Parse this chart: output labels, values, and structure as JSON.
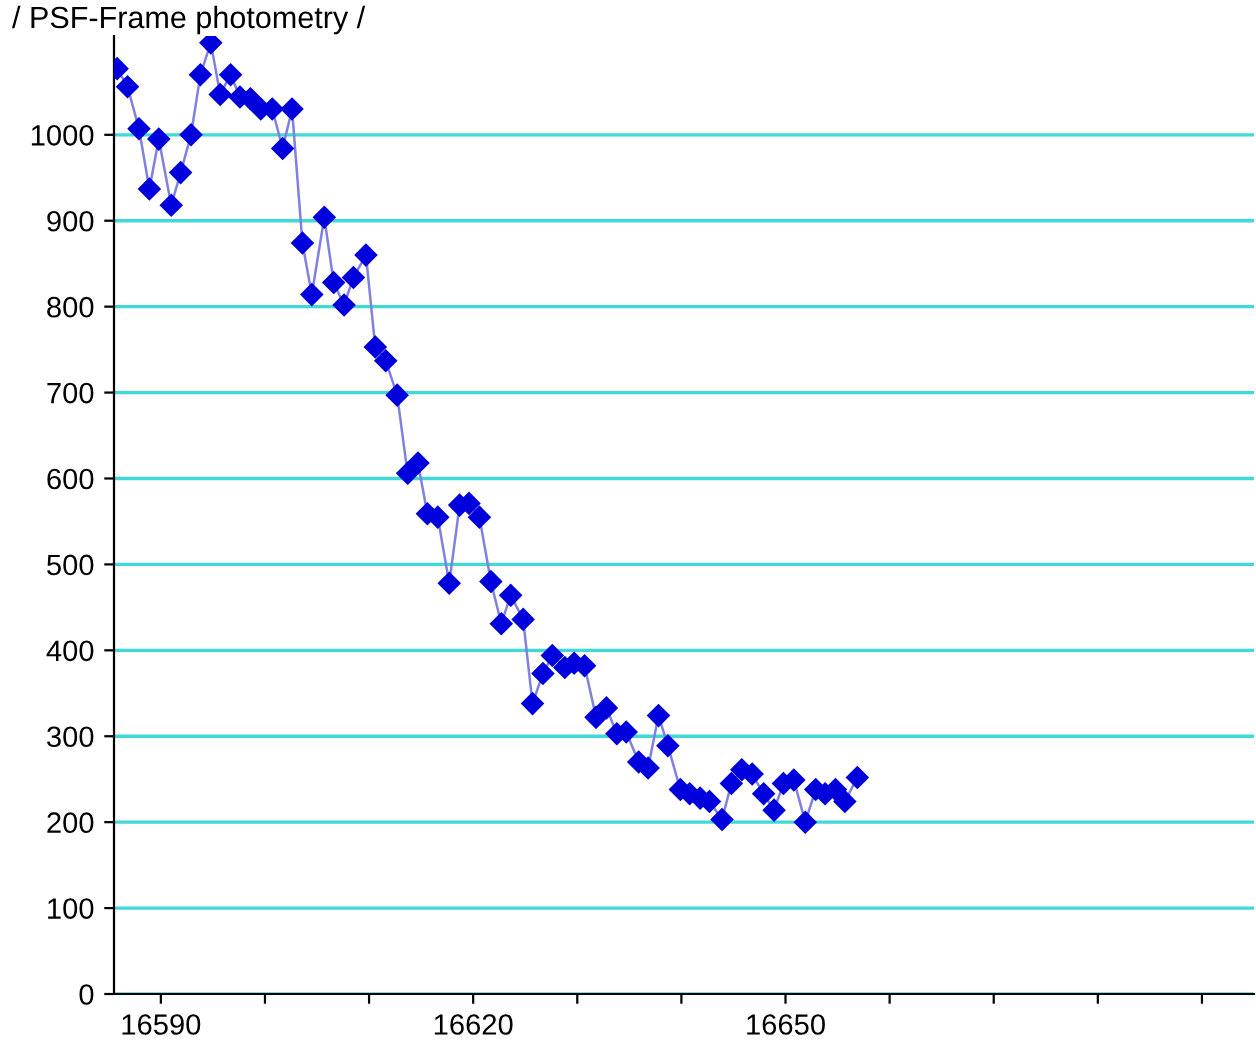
{
  "chart_data": {
    "type": "line",
    "title": "/ PSF-Frame photometry /",
    "x": [
      16585.8,
      16586.8,
      16587.9,
      16588.9,
      16589.8,
      16591.0,
      16591.9,
      16592.9,
      16593.8,
      16594.8,
      16595.7,
      16596.7,
      16597.6,
      16598.6,
      16599.6,
      16600.7,
      16601.7,
      16602.6,
      16603.6,
      16604.5,
      16605.7,
      16606.6,
      16607.6,
      16608.5,
      16609.7,
      16610.6,
      16611.6,
      16612.7,
      16613.7,
      16614.7,
      16615.6,
      16616.6,
      16617.7,
      16618.7,
      16619.6,
      16620.6,
      16621.7,
      16622.7,
      16623.6,
      16624.8,
      16625.7,
      16626.7,
      16627.6,
      16628.8,
      16629.7,
      16630.7,
      16631.8,
      16632.8,
      16633.8,
      16634.7,
      16635.9,
      16636.8,
      16637.8,
      16638.7,
      16639.9,
      16640.8,
      16641.8,
      16642.7,
      16643.9,
      16644.8,
      16645.8,
      16646.8,
      16647.9,
      16648.9,
      16649.8,
      16650.8,
      16651.9,
      16652.9,
      16653.8,
      16654.8,
      16655.7,
      16656.9
    ],
    "series": [
      {
        "color": "#0000dd",
        "values": [
          1077,
          1056,
          1007,
          937,
          995,
          918,
          956,
          1000,
          1070,
          1107,
          1047,
          1070,
          1044,
          1042,
          1030,
          1030,
          984,
          1030,
          874,
          814,
          904,
          828,
          802,
          834,
          860,
          753,
          737,
          697,
          606,
          618,
          559,
          555,
          478,
          569,
          571,
          555,
          480,
          431,
          464,
          436,
          338,
          373,
          394,
          380,
          385,
          382,
          322,
          333,
          303,
          305,
          270,
          263,
          324,
          289,
          238,
          233,
          228,
          224,
          203,
          245,
          261,
          256,
          233,
          214,
          245,
          249,
          200,
          238,
          233,
          238,
          224,
          252
        ]
      }
    ],
    "marker": "diamond",
    "line_style": "solid",
    "grid": "y",
    "legend": false,
    "xlim": [
      16585.5,
      16695
    ],
    "xticks": [
      16590,
      {
        "value": 16600,
        "label": null
      },
      {
        "value": 16610,
        "label": null
      },
      16620,
      {
        "value": 16630,
        "label": null
      },
      {
        "value": 16640,
        "label": null
      },
      16650,
      {
        "value": 16660,
        "label": null
      },
      {
        "value": 16670,
        "label": null
      },
      {
        "value": 16680,
        "label": null
      },
      {
        "value": 16690,
        "label": null
      }
    ],
    "ylim": [
      0,
      1115
    ],
    "yticks": [
      0,
      100,
      200,
      300,
      400,
      500,
      600,
      700,
      800,
      900,
      1000
    ]
  }
}
